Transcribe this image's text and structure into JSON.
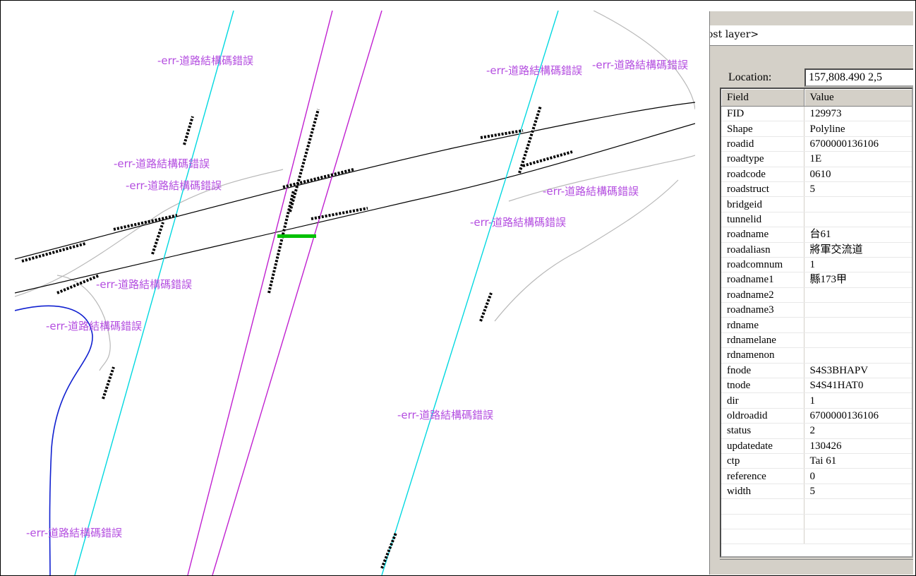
{
  "map": {
    "error_labels": [
      "-err-道路結構碼錯誤",
      "-err-道路結構碼錯誤",
      "-err-道路結構碼錯誤",
      "-err-道路結構碼錯誤",
      "-err-道路結構碼錯誤",
      "-err-道路結構碼錯誤",
      "-err-道路結構碼錯誤",
      "-err-道路結構碼錯誤",
      "-err-道路結構碼錯誤",
      "-err-道路結構碼錯誤",
      "-err-道路結構碼錯誤"
    ],
    "colors": {
      "highway": "#000000",
      "county_road": "#00d8e0",
      "provincial": "#c020d0",
      "minor": "#b0b0b0",
      "river": "#1020d0",
      "interchange_label": "#00c000",
      "error_label": "#b44ee0"
    }
  },
  "identify": {
    "layer_dropdown": "ost layer>",
    "location_label": "Location:",
    "location_value": "157,808.490  2,5",
    "columns": [
      "Field",
      "Value"
    ],
    "rows": [
      {
        "field": "FID",
        "value": "129973"
      },
      {
        "field": "Shape",
        "value": "Polyline"
      },
      {
        "field": "roadid",
        "value": "6700000136106"
      },
      {
        "field": "roadtype",
        "value": "1E"
      },
      {
        "field": "roadcode",
        "value": "0610"
      },
      {
        "field": "roadstruct",
        "value": "5"
      },
      {
        "field": "bridgeid",
        "value": ""
      },
      {
        "field": "tunnelid",
        "value": ""
      },
      {
        "field": "roadname",
        "value": "台61"
      },
      {
        "field": "roadaliasn",
        "value": "將軍交流道"
      },
      {
        "field": "roadcomnum",
        "value": "1"
      },
      {
        "field": "roadname1",
        "value": "縣173甲"
      },
      {
        "field": "roadname2",
        "value": ""
      },
      {
        "field": "roadname3",
        "value": ""
      },
      {
        "field": "rdname",
        "value": ""
      },
      {
        "field": "rdnamelane",
        "value": ""
      },
      {
        "field": "rdnamenon",
        "value": ""
      },
      {
        "field": "fnode",
        "value": "S4S3BHAPV"
      },
      {
        "field": "tnode",
        "value": "S4S41HAT0"
      },
      {
        "field": "dir",
        "value": "1"
      },
      {
        "field": "oldroadid",
        "value": "6700000136106"
      },
      {
        "field": "status",
        "value": "2"
      },
      {
        "field": "updatedate",
        "value": "130426"
      },
      {
        "field": "ctp",
        "value": "Tai 61"
      },
      {
        "field": "reference",
        "value": "0"
      },
      {
        "field": "width",
        "value": "5"
      }
    ]
  }
}
